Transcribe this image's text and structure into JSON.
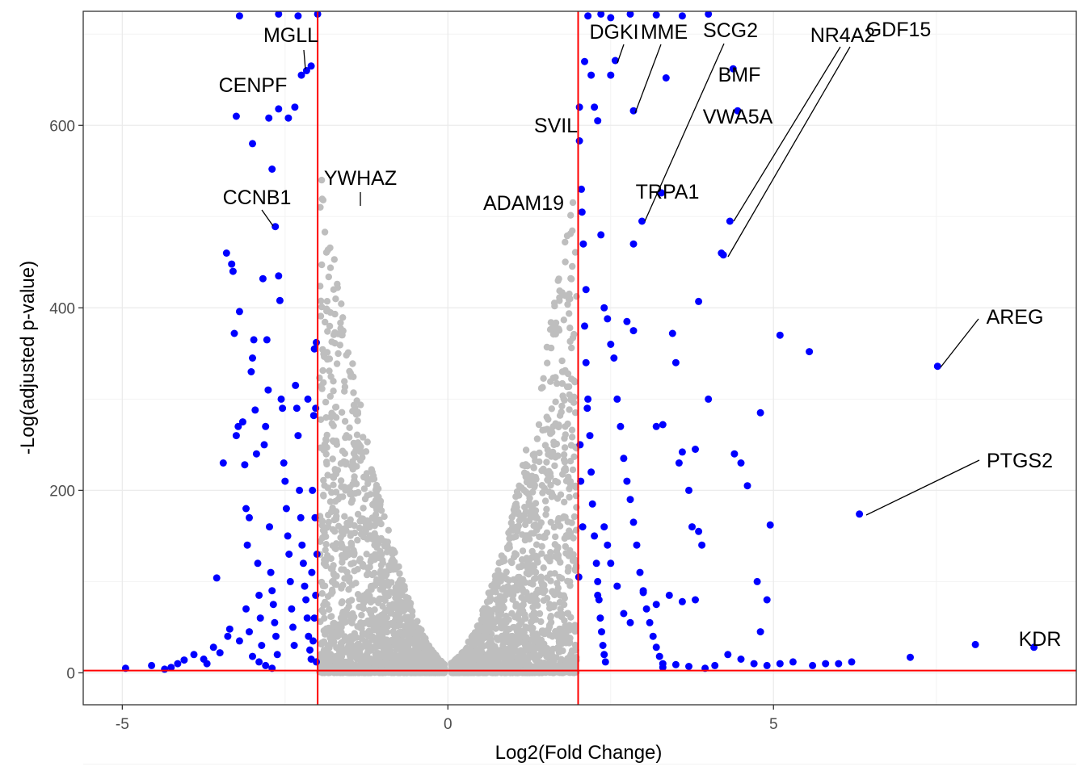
{
  "chart_data": {
    "type": "scatter",
    "title": "",
    "xlabel": "Log2(Fold Change)",
    "ylabel": "-Log(adjusted p-value)",
    "xlim": [
      -5.6,
      9.65
    ],
    "ylim": [
      -35,
      725
    ],
    "x_ticks": [
      -5,
      0,
      5
    ],
    "x_tick_labels": [
      "-5",
      "0",
      "5"
    ],
    "y_ticks": [
      0,
      200,
      400,
      600
    ],
    "y_tick_labels": [
      "0",
      "200",
      "400",
      "600"
    ],
    "grid": true,
    "legend": "none",
    "thresholds": {
      "log2fc": [
        -2,
        2
      ],
      "neglog_padj": 2.5
    },
    "colors": {
      "significant": "#0000ff",
      "nonsignificant": "#bebebe",
      "threshold_line": "#ff0000",
      "grid_major": "#ebebeb",
      "grid_minor": "#f3f3f3",
      "panel_border": "#333333",
      "label_segment": "#000000"
    },
    "labeled_genes": [
      {
        "gene": "MGLL",
        "x": -2.17,
        "y": 660
      },
      {
        "gene": "CENPF",
        "x": -2.25,
        "y": 655
      },
      {
        "gene": "CCNB1",
        "x": -2.65,
        "y": 489
      },
      {
        "gene": "YWHAZ",
        "x": -1.35,
        "y": 511
      },
      {
        "gene": "ADAM19",
        "x": 1.2,
        "y": 500
      },
      {
        "gene": "SVIL",
        "x": 1.98,
        "y": 583
      },
      {
        "gene": "DGKI",
        "x": 2.57,
        "y": 671
      },
      {
        "gene": "MME",
        "x": 2.85,
        "y": 616
      },
      {
        "gene": "SCG2",
        "x": 2.98,
        "y": 495
      },
      {
        "gene": "BMF",
        "x": 4.38,
        "y": 662
      },
      {
        "gene": "VWA5A",
        "x": 4.45,
        "y": 616
      },
      {
        "gene": "TRPA1",
        "x": 3.28,
        "y": 526
      },
      {
        "gene": "NR4A2",
        "x": 4.33,
        "y": 495
      },
      {
        "gene": "GDF15",
        "x": 4.23,
        "y": 458
      },
      {
        "gene": "AREG",
        "x": 7.52,
        "y": 336
      },
      {
        "gene": "PTGS2",
        "x": 6.32,
        "y": 174
      },
      {
        "gene": "KDR",
        "x": 9.0,
        "y": 28
      }
    ],
    "significant_points": [
      [
        -4.95,
        5
      ],
      [
        -4.55,
        8
      ],
      [
        -4.35,
        4
      ],
      [
        -4.25,
        6
      ],
      [
        -4.15,
        10
      ],
      [
        -4.05,
        14
      ],
      [
        -3.9,
        20
      ],
      [
        -3.75,
        15
      ],
      [
        -3.6,
        28
      ],
      [
        -3.55,
        104
      ],
      [
        -3.45,
        230
      ],
      [
        -3.4,
        460
      ],
      [
        -3.38,
        40
      ],
      [
        -3.3,
        440
      ],
      [
        -3.28,
        372
      ],
      [
        -3.25,
        260
      ],
      [
        -3.22,
        270
      ],
      [
        -3.2,
        396
      ],
      [
        -3.15,
        275
      ],
      [
        -3.12,
        228
      ],
      [
        -3.1,
        180
      ],
      [
        -3.08,
        140
      ],
      [
        -3.05,
        170
      ],
      [
        -3.02,
        330
      ],
      [
        -3.0,
        345
      ],
      [
        -2.98,
        365
      ],
      [
        -2.96,
        288
      ],
      [
        -2.94,
        240
      ],
      [
        -2.92,
        120
      ],
      [
        -2.9,
        85
      ],
      [
        -2.88,
        60
      ],
      [
        -2.86,
        30
      ],
      [
        -2.84,
        432
      ],
      [
        -2.82,
        250
      ],
      [
        -2.8,
        270
      ],
      [
        -2.78,
        365
      ],
      [
        -2.76,
        310
      ],
      [
        -2.74,
        160
      ],
      [
        -2.72,
        110
      ],
      [
        -2.7,
        90
      ],
      [
        -2.68,
        75
      ],
      [
        -2.66,
        55
      ],
      [
        -2.64,
        40
      ],
      [
        -2.62,
        20
      ],
      [
        -2.6,
        435
      ],
      [
        -2.58,
        408
      ],
      [
        -2.56,
        300
      ],
      [
        -2.54,
        290
      ],
      [
        -2.52,
        230
      ],
      [
        -2.5,
        210
      ],
      [
        -2.48,
        180
      ],
      [
        -2.46,
        150
      ],
      [
        -2.44,
        130
      ],
      [
        -2.42,
        100
      ],
      [
        -2.4,
        70
      ],
      [
        -2.38,
        50
      ],
      [
        -2.36,
        30
      ],
      [
        -2.34,
        315
      ],
      [
        -2.32,
        290
      ],
      [
        -2.3,
        260
      ],
      [
        -2.28,
        200
      ],
      [
        -2.26,
        170
      ],
      [
        -2.24,
        140
      ],
      [
        -2.22,
        120
      ],
      [
        -2.2,
        95
      ],
      [
        -2.18,
        80
      ],
      [
        -2.16,
        60
      ],
      [
        -2.14,
        40
      ],
      [
        -2.12,
        25
      ],
      [
        -2.1,
        15
      ],
      [
        -2.7,
        552
      ],
      [
        -2.75,
        608
      ],
      [
        -2.6,
        618
      ],
      [
        -3.0,
        580
      ],
      [
        -2.45,
        608
      ],
      [
        -2.35,
        620
      ],
      [
        -2.1,
        665
      ],
      [
        -2.05,
        355
      ],
      [
        -2.02,
        362
      ],
      [
        -2.03,
        290
      ],
      [
        -2.06,
        282
      ],
      [
        -2.08,
        200
      ],
      [
        -2.04,
        170
      ],
      [
        -2.01,
        130
      ],
      [
        -2.09,
        110
      ],
      [
        -2.03,
        85
      ],
      [
        -2.05,
        60
      ],
      [
        -2.07,
        35
      ],
      [
        -2.02,
        12
      ],
      [
        -2.15,
        300
      ],
      [
        -3.1,
        70
      ],
      [
        -3.05,
        45
      ],
      [
        -3.2,
        35
      ],
      [
        -3.35,
        48
      ],
      [
        -3.5,
        22
      ],
      [
        -3.7,
        10
      ],
      [
        -3.0,
        18
      ],
      [
        -2.9,
        12
      ],
      [
        -2.8,
        8
      ],
      [
        -2.7,
        5
      ],
      [
        -2.65,
        489
      ],
      [
        -2.17,
        660
      ],
      [
        -2.25,
        655
      ],
      [
        -3.25,
        610
      ],
      [
        -3.32,
        448
      ],
      [
        2.02,
        620
      ],
      [
        2.05,
        530
      ],
      [
        2.08,
        470
      ],
      [
        2.1,
        380
      ],
      [
        2.12,
        340
      ],
      [
        2.15,
        300
      ],
      [
        2.18,
        260
      ],
      [
        2.2,
        220
      ],
      [
        2.22,
        185
      ],
      [
        2.25,
        150
      ],
      [
        2.28,
        120
      ],
      [
        2.3,
        100
      ],
      [
        2.32,
        80
      ],
      [
        2.34,
        60
      ],
      [
        2.36,
        45
      ],
      [
        2.38,
        30
      ],
      [
        2.4,
        20
      ],
      [
        2.42,
        12
      ],
      [
        2.2,
        655
      ],
      [
        2.3,
        605
      ],
      [
        2.35,
        480
      ],
      [
        2.4,
        400
      ],
      [
        2.45,
        388
      ],
      [
        2.5,
        360
      ],
      [
        2.55,
        345
      ],
      [
        2.6,
        300
      ],
      [
        2.65,
        270
      ],
      [
        2.7,
        235
      ],
      [
        2.75,
        210
      ],
      [
        2.8,
        190
      ],
      [
        2.85,
        165
      ],
      [
        2.9,
        140
      ],
      [
        2.95,
        110
      ],
      [
        3.0,
        90
      ],
      [
        3.05,
        70
      ],
      [
        3.1,
        55
      ],
      [
        3.15,
        40
      ],
      [
        3.2,
        28
      ],
      [
        3.25,
        18
      ],
      [
        3.3,
        10
      ],
      [
        2.57,
        671
      ],
      [
        2.85,
        616
      ],
      [
        2.98,
        495
      ],
      [
        3.28,
        526
      ],
      [
        2.85,
        470
      ],
      [
        2.5,
        655
      ],
      [
        2.25,
        620
      ],
      [
        3.35,
        652
      ],
      [
        2.75,
        385
      ],
      [
        2.85,
        375
      ],
      [
        3.2,
        270
      ],
      [
        3.3,
        272
      ],
      [
        3.5,
        340
      ],
      [
        3.55,
        230
      ],
      [
        3.6,
        242
      ],
      [
        3.7,
        200
      ],
      [
        3.75,
        160
      ],
      [
        3.8,
        245
      ],
      [
        3.85,
        155
      ],
      [
        3.9,
        140
      ],
      [
        3.45,
        372
      ],
      [
        3.85,
        407
      ],
      [
        4.0,
        300
      ],
      [
        4.2,
        460
      ],
      [
        4.38,
        662
      ],
      [
        4.45,
        616
      ],
      [
        4.33,
        495
      ],
      [
        4.23,
        458
      ],
      [
        4.4,
        240
      ],
      [
        4.5,
        230
      ],
      [
        4.6,
        205
      ],
      [
        4.8,
        285
      ],
      [
        4.95,
        162
      ],
      [
        5.1,
        370
      ],
      [
        5.55,
        352
      ],
      [
        4.75,
        100
      ],
      [
        4.8,
        45
      ],
      [
        4.9,
        80
      ],
      [
        3.8,
        80
      ],
      [
        3.6,
        78
      ],
      [
        3.4,
        85
      ],
      [
        3.2,
        75
      ],
      [
        3.0,
        88
      ],
      [
        2.8,
        55
      ],
      [
        2.7,
        65
      ],
      [
        2.6,
        95
      ],
      [
        2.5,
        120
      ],
      [
        2.45,
        140
      ],
      [
        2.4,
        160
      ],
      [
        2.3,
        85
      ],
      [
        4.3,
        20
      ],
      [
        4.5,
        15
      ],
      [
        4.7,
        10
      ],
      [
        4.9,
        8
      ],
      [
        5.1,
        10
      ],
      [
        5.3,
        12
      ],
      [
        5.6,
        8
      ],
      [
        5.8,
        10
      ],
      [
        6.0,
        10
      ],
      [
        6.2,
        12
      ],
      [
        7.1,
        17
      ],
      [
        7.52,
        336
      ],
      [
        6.32,
        174
      ],
      [
        8.1,
        31
      ],
      [
        9.0,
        28
      ],
      [
        4.1,
        8
      ],
      [
        3.95,
        5
      ],
      [
        3.7,
        7
      ],
      [
        3.5,
        9
      ],
      [
        3.3,
        6
      ],
      [
        2.15,
        720
      ],
      [
        2.35,
        722
      ],
      [
        2.5,
        718
      ],
      [
        2.8,
        722
      ],
      [
        3.2,
        721
      ],
      [
        3.6,
        720
      ],
      [
        4.0,
        722
      ],
      [
        -2.3,
        720
      ],
      [
        -2.6,
        722
      ],
      [
        -3.2,
        720
      ],
      [
        -2.0,
        722
      ],
      [
        2.02,
        583
      ],
      [
        2.1,
        670
      ],
      [
        2.06,
        505
      ],
      [
        2.12,
        420
      ],
      [
        2.14,
        290
      ],
      [
        2.03,
        250
      ],
      [
        2.04,
        210
      ],
      [
        2.07,
        160
      ],
      [
        2.01,
        105
      ]
    ]
  }
}
